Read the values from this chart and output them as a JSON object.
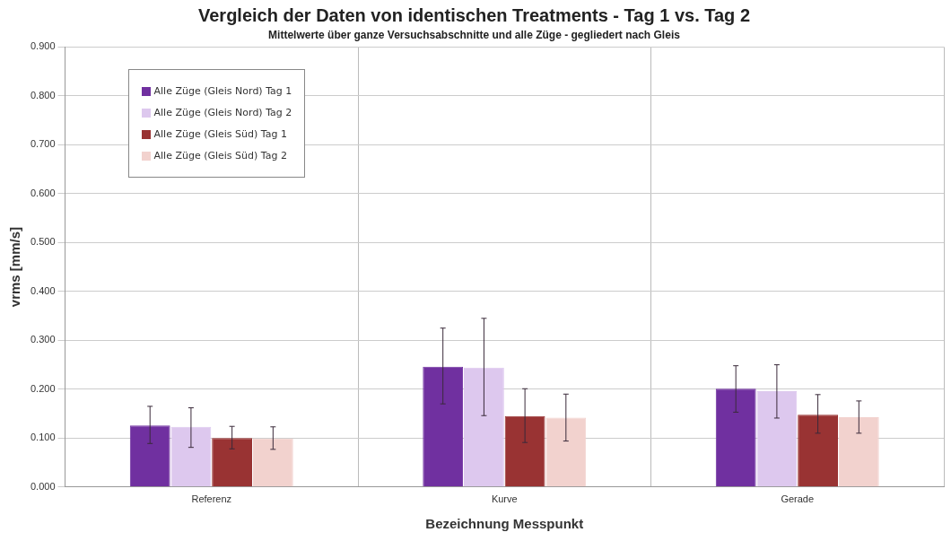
{
  "chart_data": {
    "type": "bar",
    "title": "Vergleich der Daten von identischen Treatments - Tag 1 vs. Tag 2",
    "subtitle": "Mittelwerte über ganze Versuchsabschnitte und alle Züge - gegliedert nach Gleis",
    "xlabel": "Bezeichnung Messpunkt",
    "ylabel": "vrms [mm/s]",
    "categories": [
      "Referenz",
      "Kurve",
      "Gerade"
    ],
    "series": [
      {
        "name": "Alle Züge (Gleis Nord) Tag 1",
        "color": "#7030a0",
        "values": [
          0.126,
          0.246,
          0.201
        ],
        "errors": [
          [
            0.089,
            0.165
          ],
          [
            0.17,
            0.325
          ],
          [
            0.153,
            0.248
          ]
        ]
      },
      {
        "name": "Alle Züge (Gleis Nord) Tag 2",
        "color": "#ddc8ee",
        "values": [
          0.123,
          0.244,
          0.196
        ],
        "errors": [
          [
            0.081,
            0.162
          ],
          [
            0.146,
            0.345
          ],
          [
            0.141,
            0.25
          ]
        ]
      },
      {
        "name": "Alle Züge (Gleis Süd) Tag 1",
        "color": "#993333",
        "values": [
          0.1,
          0.145,
          0.148
        ],
        "errors": [
          [
            0.078,
            0.124
          ],
          [
            0.091,
            0.201
          ],
          [
            0.11,
            0.189
          ]
        ]
      },
      {
        "name": "Alle Züge (Gleis Süd) Tag 2",
        "color": "#f2d2ce",
        "values": [
          0.099,
          0.142,
          0.143
        ],
        "errors": [
          [
            0.077,
            0.123
          ],
          [
            0.094,
            0.19
          ],
          [
            0.11,
            0.176
          ]
        ]
      }
    ],
    "ylim": [
      0,
      0.9
    ],
    "yticks": [
      {
        "value": 0,
        "label": "0.000"
      },
      {
        "value": 0.1,
        "label": "0.100"
      },
      {
        "value": 0.2,
        "label": "0.200"
      },
      {
        "value": 0.3,
        "label": "0.300"
      },
      {
        "value": 0.4,
        "label": "0.400"
      },
      {
        "value": 0.5,
        "label": "0.500"
      },
      {
        "value": 0.6,
        "label": "0.600"
      },
      {
        "value": 0.7,
        "label": "0.700"
      },
      {
        "value": 0.8,
        "label": "0.800"
      },
      {
        "value": 0.9,
        "label": "0.900"
      }
    ],
    "grid": true,
    "legend": "top left"
  }
}
